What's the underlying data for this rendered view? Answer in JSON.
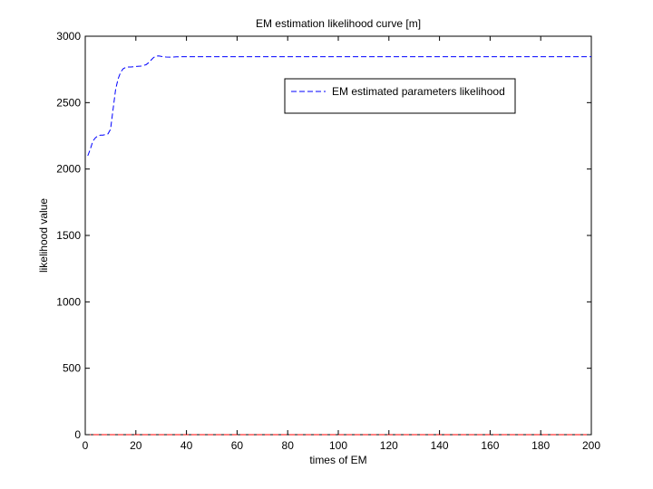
{
  "chart_data": {
    "type": "line",
    "title": "EM estimation likelihood curve [m]",
    "xlabel": "times of EM",
    "ylabel": "likelihood value",
    "xlim": [
      0,
      200
    ],
    "ylim": [
      0,
      3000
    ],
    "xticks": [
      0,
      20,
      40,
      60,
      80,
      100,
      120,
      140,
      160,
      180,
      200
    ],
    "yticks": [
      0,
      500,
      1000,
      1500,
      2000,
      2500,
      3000
    ],
    "grid": false,
    "legend_position": "top-right",
    "series": [
      {
        "name": "EM estimated parameters likelihood",
        "color": "#0000ff",
        "style": "dashed",
        "x": [
          1,
          2,
          3,
          4,
          5,
          6,
          7,
          8,
          9,
          10,
          11,
          12,
          13,
          14,
          15,
          16,
          17,
          18,
          20,
          22,
          24,
          25,
          26,
          27,
          28,
          29,
          30,
          32,
          34,
          36,
          40,
          50,
          60,
          80,
          100,
          120,
          140,
          160,
          180,
          200
        ],
        "y": [
          2100,
          2150,
          2210,
          2235,
          2250,
          2255,
          2255,
          2260,
          2265,
          2300,
          2450,
          2600,
          2680,
          2730,
          2755,
          2765,
          2768,
          2768,
          2772,
          2775,
          2785,
          2800,
          2820,
          2840,
          2850,
          2852,
          2848,
          2843,
          2842,
          2845,
          2846,
          2846,
          2846,
          2846,
          2846,
          2846,
          2846,
          2846,
          2846,
          2846
        ]
      },
      {
        "color": "#ff0000",
        "style": "dashed",
        "x": [
          0,
          200
        ],
        "y": [
          0,
          0
        ]
      }
    ]
  }
}
